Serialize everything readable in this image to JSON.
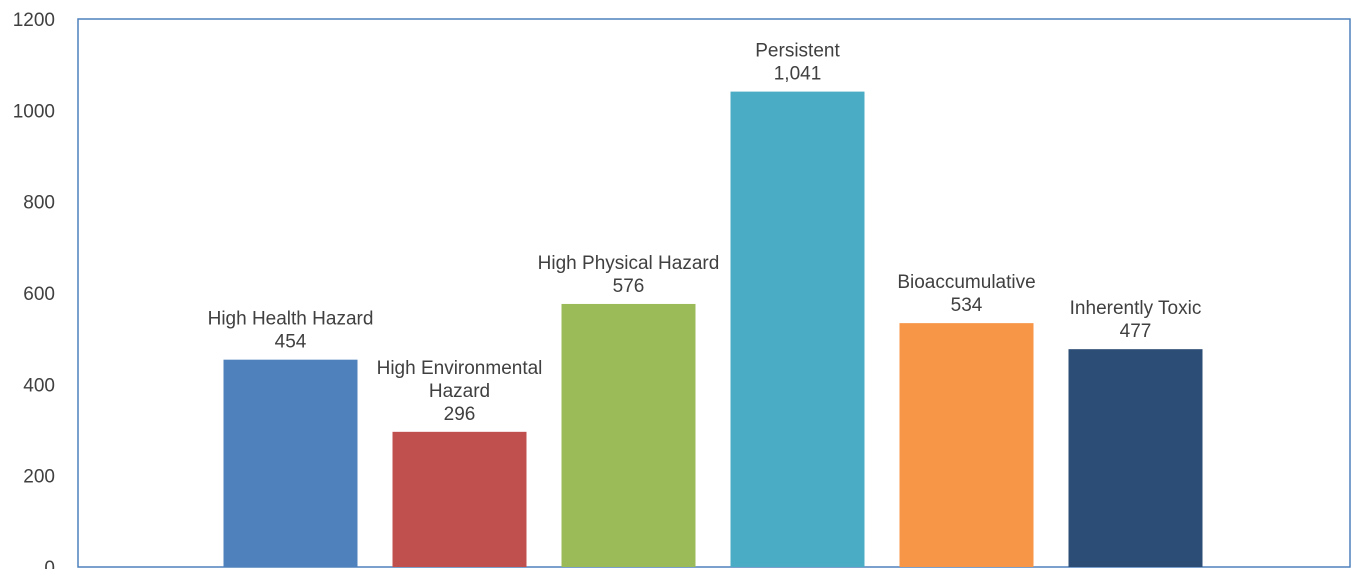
{
  "chart_data": {
    "type": "bar",
    "categories": [
      "High Health Hazard",
      "High Environmental Hazard",
      "High Physical Hazard",
      "Persistent",
      "Bioaccumulative",
      "Inherently Toxic"
    ],
    "values": [
      454,
      296,
      576,
      1041,
      534,
      477
    ],
    "value_labels": [
      "454",
      "296",
      "576",
      "1,041",
      "534",
      "477"
    ],
    "bar_colors": [
      "#4F81BD",
      "#C0504D",
      "#9BBB59",
      "#4BACC6",
      "#F79646",
      "#2C4D75"
    ],
    "title": "",
    "xlabel": "",
    "ylabel": "",
    "ylim": [
      0,
      1200
    ],
    "yticks": [
      0,
      200,
      400,
      600,
      800,
      1000,
      1200
    ],
    "grid": false,
    "legend": "none",
    "frame_color": "#4F81BD"
  }
}
